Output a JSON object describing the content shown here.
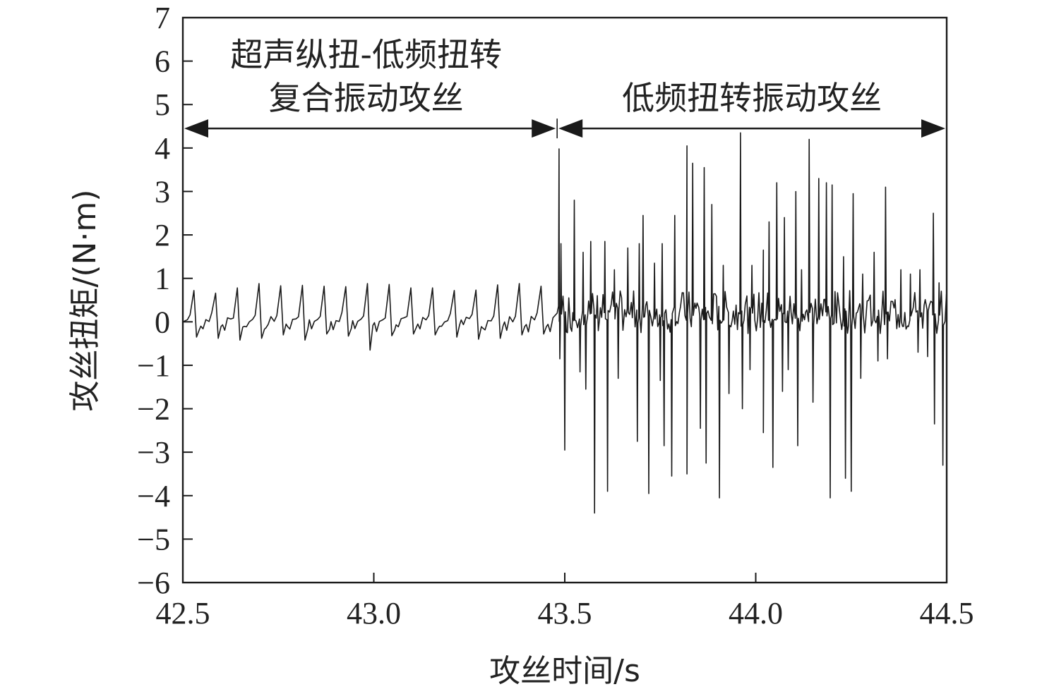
{
  "chart_data": {
    "type": "line",
    "xlabel": "攻丝时间/s",
    "ylabel": "攻丝扭矩/(N·m)",
    "xlim": [
      42.5,
      44.5
    ],
    "ylim": [
      -6,
      7
    ],
    "x_ticks": [
      42.5,
      43.0,
      43.5,
      44.0,
      44.5
    ],
    "x_tick_labels": [
      "42.5",
      "43.0",
      "43.5",
      "44.0",
      "44.5"
    ],
    "y_ticks": [
      -6,
      -5,
      -4,
      -3,
      -2,
      -1,
      0,
      1,
      2,
      3,
      4,
      5,
      6,
      7
    ],
    "y_tick_labels": [
      "−6",
      "−5",
      "−4",
      "−3",
      "−2",
      "−1",
      "0",
      "1",
      "2",
      "3",
      "4",
      "5",
      "6",
      "7"
    ],
    "grid": false,
    "line_color": "#1a1a1a",
    "regions": [
      {
        "label_lines": [
          "超声纵扭-低频扭转",
          "复合振动攻丝"
        ],
        "x_start": 42.5,
        "x_end": 43.48,
        "arrow_y": 4.45,
        "label_x": 42.98,
        "label_y_values": [
          6.15,
          5.15
        ]
      },
      {
        "label_lines": [
          "低频扭转振动攻丝"
        ],
        "x_start": 43.48,
        "x_end": 44.5,
        "arrow_y": 4.45,
        "label_x": 43.99,
        "label_y_values": [
          5.15
        ]
      }
    ],
    "boundary_x": 43.48,
    "series": [
      {
        "x_start": 42.5,
        "x_end": 44.5,
        "segment_1": {
          "x_end": 43.48,
          "period": 0.0568,
          "peak_values": [
            0.72,
            0.66,
            0.78,
            0.88,
            0.83,
            0.84,
            0.82,
            0.81,
            0.88,
            0.86,
            0.78,
            0.78,
            0.72,
            0.73,
            0.85,
            0.88,
            0.82
          ],
          "trough_values": [
            -0.35,
            -0.38,
            -0.42,
            -0.38,
            -0.3,
            -0.42,
            -0.28,
            -0.33,
            -0.65,
            -0.32,
            -0.28,
            -0.3,
            -0.35,
            -0.4,
            -0.38,
            -0.3,
            -0.28
          ]
        },
        "segment_2": {
          "x_start": 43.48,
          "x_end": 44.5,
          "baseline_band": [
            -0.6,
            0.9
          ],
          "peaks": [
            {
              "x": 43.485,
              "y": 3.98
            },
            {
              "x": 43.49,
              "y": 1.8
            },
            {
              "x": 43.525,
              "y": 2.8
            },
            {
              "x": 43.548,
              "y": 1.6
            },
            {
              "x": 43.568,
              "y": 1.85
            },
            {
              "x": 43.605,
              "y": 1.85
            },
            {
              "x": 43.63,
              "y": 1.2
            },
            {
              "x": 43.665,
              "y": 1.7
            },
            {
              "x": 43.695,
              "y": 1.8
            },
            {
              "x": 43.705,
              "y": 2.45
            },
            {
              "x": 43.735,
              "y": 1.35
            },
            {
              "x": 43.755,
              "y": 1.8
            },
            {
              "x": 43.788,
              "y": 2.45
            },
            {
              "x": 43.82,
              "y": 4.05
            },
            {
              "x": 43.835,
              "y": 3.65
            },
            {
              "x": 43.865,
              "y": 3.55
            },
            {
              "x": 43.885,
              "y": 2.7
            },
            {
              "x": 43.915,
              "y": 1.3
            },
            {
              "x": 43.96,
              "y": 4.35
            },
            {
              "x": 43.99,
              "y": 1.3
            },
            {
              "x": 44.02,
              "y": 1.65
            },
            {
              "x": 44.035,
              "y": 2.3
            },
            {
              "x": 44.055,
              "y": 3.2
            },
            {
              "x": 44.075,
              "y": 2.4
            },
            {
              "x": 44.105,
              "y": 3.0
            },
            {
              "x": 44.12,
              "y": 1.2
            },
            {
              "x": 44.14,
              "y": 4.2
            },
            {
              "x": 44.165,
              "y": 3.3
            },
            {
              "x": 44.185,
              "y": 3.2
            },
            {
              "x": 44.2,
              "y": 3.15
            },
            {
              "x": 44.23,
              "y": 1.5
            },
            {
              "x": 44.255,
              "y": 2.95
            },
            {
              "x": 44.28,
              "y": 1.1
            },
            {
              "x": 44.31,
              "y": 1.6
            },
            {
              "x": 44.34,
              "y": 3.1
            },
            {
              "x": 44.38,
              "y": 1.2
            },
            {
              "x": 44.405,
              "y": 1.1
            },
            {
              "x": 44.43,
              "y": 1.2
            },
            {
              "x": 44.465,
              "y": 2.5
            },
            {
              "x": 44.48,
              "y": 0.9
            }
          ],
          "troughs": [
            {
              "x": 43.487,
              "y": -0.85
            },
            {
              "x": 43.5,
              "y": -2.95
            },
            {
              "x": 43.54,
              "y": -1.15
            },
            {
              "x": 43.555,
              "y": -1.55
            },
            {
              "x": 43.578,
              "y": -4.4
            },
            {
              "x": 43.612,
              "y": -3.9
            },
            {
              "x": 43.64,
              "y": -1.3
            },
            {
              "x": 43.69,
              "y": -2.75
            },
            {
              "x": 43.72,
              "y": -3.95
            },
            {
              "x": 43.75,
              "y": -1.35
            },
            {
              "x": 43.76,
              "y": -2.85
            },
            {
              "x": 43.78,
              "y": -3.55
            },
            {
              "x": 43.82,
              "y": -3.5
            },
            {
              "x": 43.855,
              "y": -2.45
            },
            {
              "x": 43.87,
              "y": -3.25
            },
            {
              "x": 43.905,
              "y": -4.05
            },
            {
              "x": 43.93,
              "y": -1.65
            },
            {
              "x": 43.965,
              "y": -2.0
            },
            {
              "x": 43.985,
              "y": -1.1
            },
            {
              "x": 44.02,
              "y": -2.55
            },
            {
              "x": 44.045,
              "y": -3.35
            },
            {
              "x": 44.07,
              "y": -1.6
            },
            {
              "x": 44.085,
              "y": -1.1
            },
            {
              "x": 44.11,
              "y": -2.85
            },
            {
              "x": 44.15,
              "y": -1.85
            },
            {
              "x": 44.195,
              "y": -4.05
            },
            {
              "x": 44.235,
              "y": -3.6
            },
            {
              "x": 44.25,
              "y": -3.9
            },
            {
              "x": 44.275,
              "y": -1.3
            },
            {
              "x": 44.32,
              "y": -0.9
            },
            {
              "x": 44.345,
              "y": -0.85
            },
            {
              "x": 44.425,
              "y": -0.7
            },
            {
              "x": 44.45,
              "y": -0.8
            },
            {
              "x": 44.468,
              "y": -2.35
            },
            {
              "x": 44.49,
              "y": -3.3
            }
          ]
        }
      }
    ]
  }
}
